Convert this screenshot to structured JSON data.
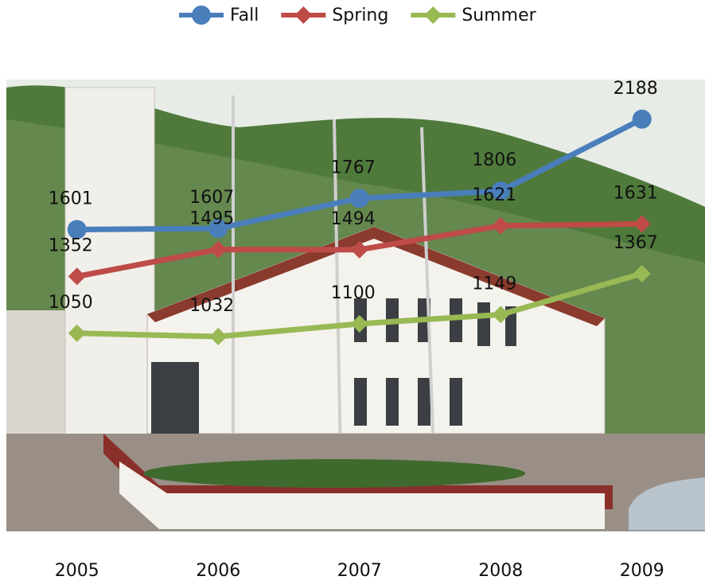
{
  "chart_data": {
    "type": "line",
    "categories": [
      "2005",
      "2006",
      "2007",
      "2008",
      "2009"
    ],
    "series": [
      {
        "name": "Fall",
        "color": "#4a7ebb",
        "marker": "circle",
        "values": [
          1601,
          1607,
          1767,
          1806,
          2188
        ]
      },
      {
        "name": "Spring",
        "color": "#be4b48",
        "marker": "diamond",
        "values": [
          1352,
          1495,
          1494,
          1621,
          1631
        ]
      },
      {
        "name": "Summer",
        "color": "#98b954",
        "marker": "diamond",
        "values": [
          1050,
          1032,
          1100,
          1149,
          1367
        ]
      }
    ],
    "ylim": [
      0,
      2500
    ],
    "legend": "top"
  }
}
